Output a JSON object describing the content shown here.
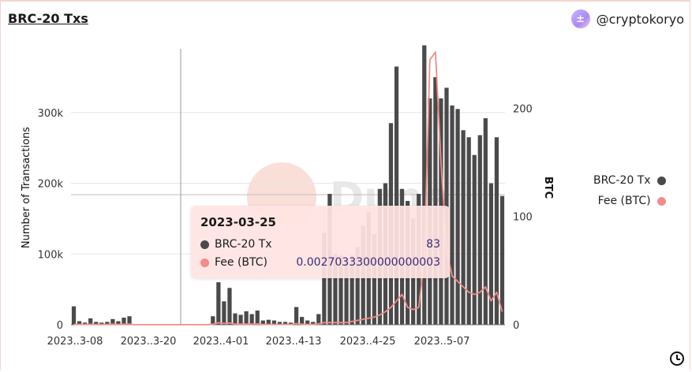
{
  "header": {
    "title": "BRC-20 Txs",
    "author": "@cryptokoryo",
    "avatar_glyph": "±"
  },
  "colors": {
    "bar": "#4a4a4a",
    "fee_line": "#f08c8a",
    "grid": "#e6e6e6",
    "watermark": "#f5b8aa"
  },
  "chart_data": {
    "type": "bar",
    "x_ticks": [
      "2023..3-08",
      "2023..3-20",
      "2023..4-01",
      "2023..4-13",
      "2023..4-25",
      "2023..5-07"
    ],
    "y_left": {
      "label": "Number of Transactions",
      "ticks": [
        "0",
        "100k",
        "200k",
        "300k"
      ],
      "range": [
        0,
        390000
      ]
    },
    "y_right": {
      "label": "BTC",
      "ticks": [
        "0",
        "100",
        "200"
      ],
      "range": [
        0,
        255
      ]
    },
    "series": [
      {
        "name": "BRC-20 Tx",
        "type": "bar",
        "axis": "left",
        "values": [
          26000,
          5000,
          3000,
          9000,
          4000,
          3000,
          4000,
          8000,
          5000,
          10000,
          12000,
          0,
          0,
          0,
          0,
          0,
          0,
          0,
          0,
          0,
          0,
          0,
          0,
          0,
          0,
          12000,
          60000,
          33000,
          52000,
          16000,
          14000,
          19000,
          15000,
          20000,
          6000,
          7000,
          6000,
          4000,
          4000,
          3000,
          25000,
          11000,
          6000,
          4000,
          15000,
          130000,
          185000,
          100000,
          98000,
          92000,
          98000,
          110000,
          140000,
          160000,
          128000,
          192000,
          200000,
          285000,
          365000,
          192000,
          175000,
          150000,
          185000,
          395000,
          320000,
          350000,
          320000,
          335000,
          310000,
          305000,
          275000,
          265000,
          240000,
          268000,
          292000,
          200000,
          265000,
          182000
        ]
      },
      {
        "name": "Fee (BTC)",
        "type": "line",
        "axis": "right",
        "values": [
          0.4,
          0.3,
          0.3,
          0.4,
          0.2,
          0.2,
          0.3,
          0.5,
          0.3,
          0.5,
          0.5,
          0.0,
          0.0,
          0.0,
          0.0,
          0.0,
          0.0,
          0.0,
          0.0,
          0.0,
          0.0,
          0.0,
          0.0,
          0.0,
          0.0,
          0.5,
          1.8,
          1.2,
          1.6,
          0.6,
          0.5,
          0.6,
          0.5,
          0.7,
          0.3,
          0.3,
          0.3,
          0.3,
          0.3,
          0.3,
          1.0,
          0.5,
          0.3,
          0.3,
          0.8,
          2,
          2,
          2,
          2,
          2,
          3,
          4,
          5,
          6,
          7,
          9,
          12,
          16,
          22,
          28,
          16,
          14,
          16,
          60,
          245,
          252,
          150,
          70,
          45,
          40,
          35,
          30,
          28,
          30,
          35,
          22,
          30,
          12
        ]
      }
    ],
    "legend": "right",
    "grid": true,
    "crosshair": {
      "date": "2023-03-25"
    },
    "tooltip": {
      "date": "2023-03-25",
      "rows": [
        {
          "label": "BRC-20 Tx",
          "value": "83"
        },
        {
          "label": "Fee (BTC)",
          "value": "0.0027033300000000003"
        }
      ]
    }
  }
}
